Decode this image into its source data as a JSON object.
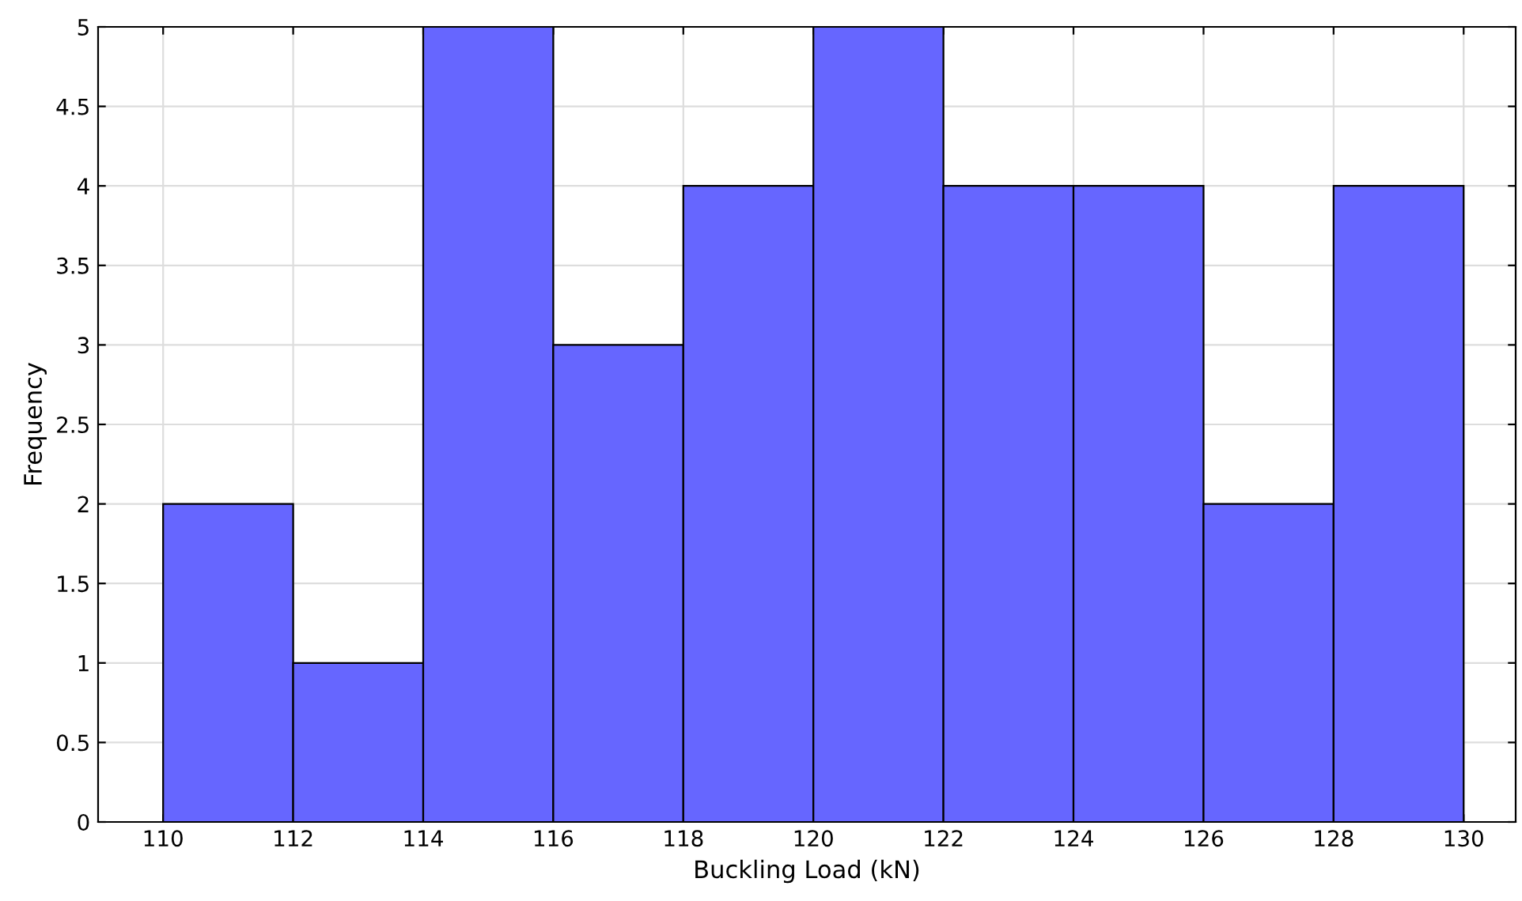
{
  "chart_data": {
    "type": "histogram",
    "xlabel": "Buckling Load (kN)",
    "ylabel": "Frequency",
    "bins": [
      110,
      112,
      114,
      116,
      118,
      120,
      122,
      124,
      126,
      128,
      130
    ],
    "values": [
      2,
      1,
      5,
      3,
      4,
      5,
      4,
      4,
      2,
      4
    ],
    "color": "#6666ff",
    "xlim": [
      109,
      130.8
    ],
    "xticks": [
      110,
      112,
      114,
      116,
      118,
      120,
      122,
      124,
      126,
      128,
      130
    ],
    "ylim": [
      0,
      5
    ],
    "yticks": [
      0,
      0.5,
      1,
      1.5,
      2,
      2.5,
      3,
      3.5,
      4,
      4.5,
      5
    ],
    "grid": true
  }
}
